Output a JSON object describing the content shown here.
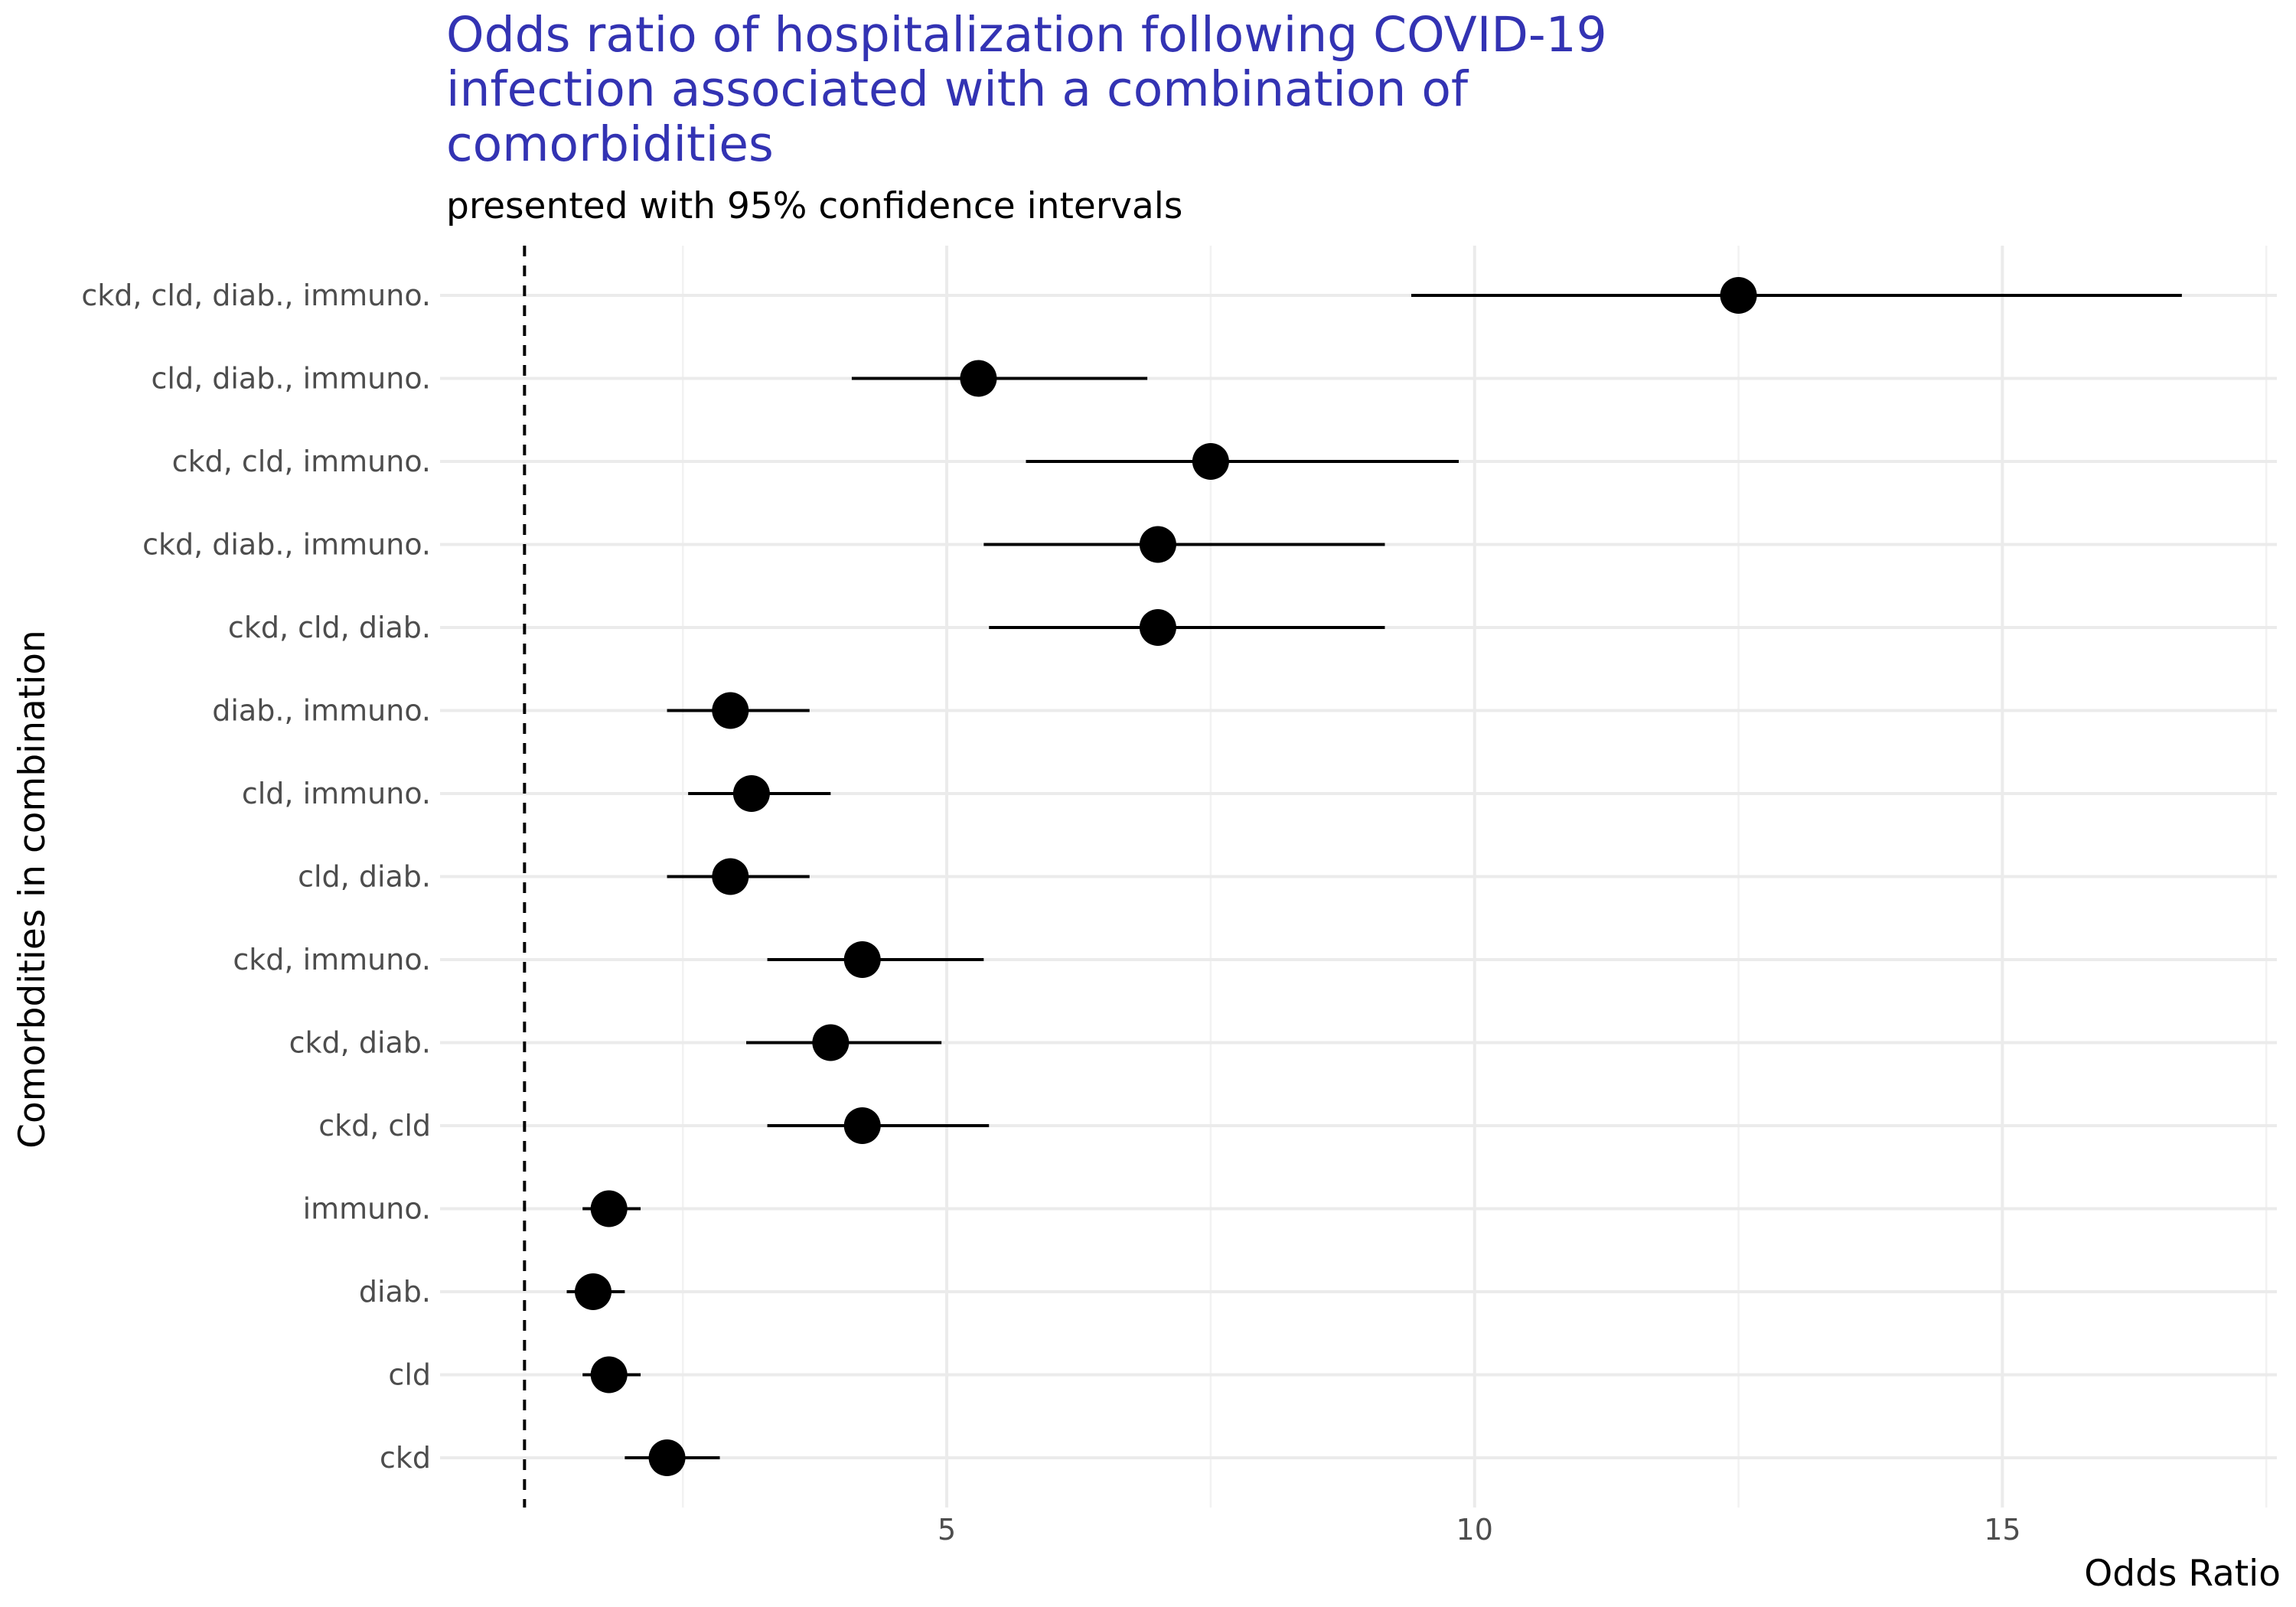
{
  "chart_data": {
    "type": "forest",
    "title": "Odds ratio of hospitalization following COVID-19 infection associated with a combination of comorbidities",
    "title_lines": [
      "Odds ratio of hospitalization following COVID-19",
      "infection associated with a combination of",
      "comorbidities"
    ],
    "subtitle": "presented with 95% confidence intervals",
    "xlabel": "Odds Ratio",
    "ylabel": "Comorbdities in combination",
    "xlim": [
      0.2,
      17.6
    ],
    "xticks": [
      5,
      10,
      15
    ],
    "reference_line": 1,
    "grid": true,
    "categories": [
      "ckd, cld, diab., immuno.",
      "cld, diab., immuno.",
      "ckd, cld, immuno.",
      "ckd, diab., immuno.",
      "ckd, cld, diab.",
      "diab., immuno.",
      "cld, immuno.",
      "cld, diab.",
      "ckd, immuno.",
      "ckd, diab.",
      "ckd, cld",
      "immuno.",
      "diab.",
      "cld",
      "ckd"
    ],
    "estimates": [
      12.5,
      5.3,
      7.5,
      7.0,
      7.0,
      2.95,
      3.15,
      2.95,
      4.2,
      3.9,
      4.2,
      1.8,
      1.65,
      1.8,
      2.35
    ],
    "lower": [
      9.4,
      4.1,
      5.75,
      5.35,
      5.4,
      2.35,
      2.55,
      2.35,
      3.3,
      3.1,
      3.3,
      1.55,
      1.4,
      1.55,
      1.95
    ],
    "upper": [
      16.7,
      6.9,
      9.85,
      9.15,
      9.15,
      3.7,
      3.9,
      3.7,
      5.35,
      4.95,
      5.4,
      2.1,
      1.95,
      2.1,
      2.85
    ]
  }
}
